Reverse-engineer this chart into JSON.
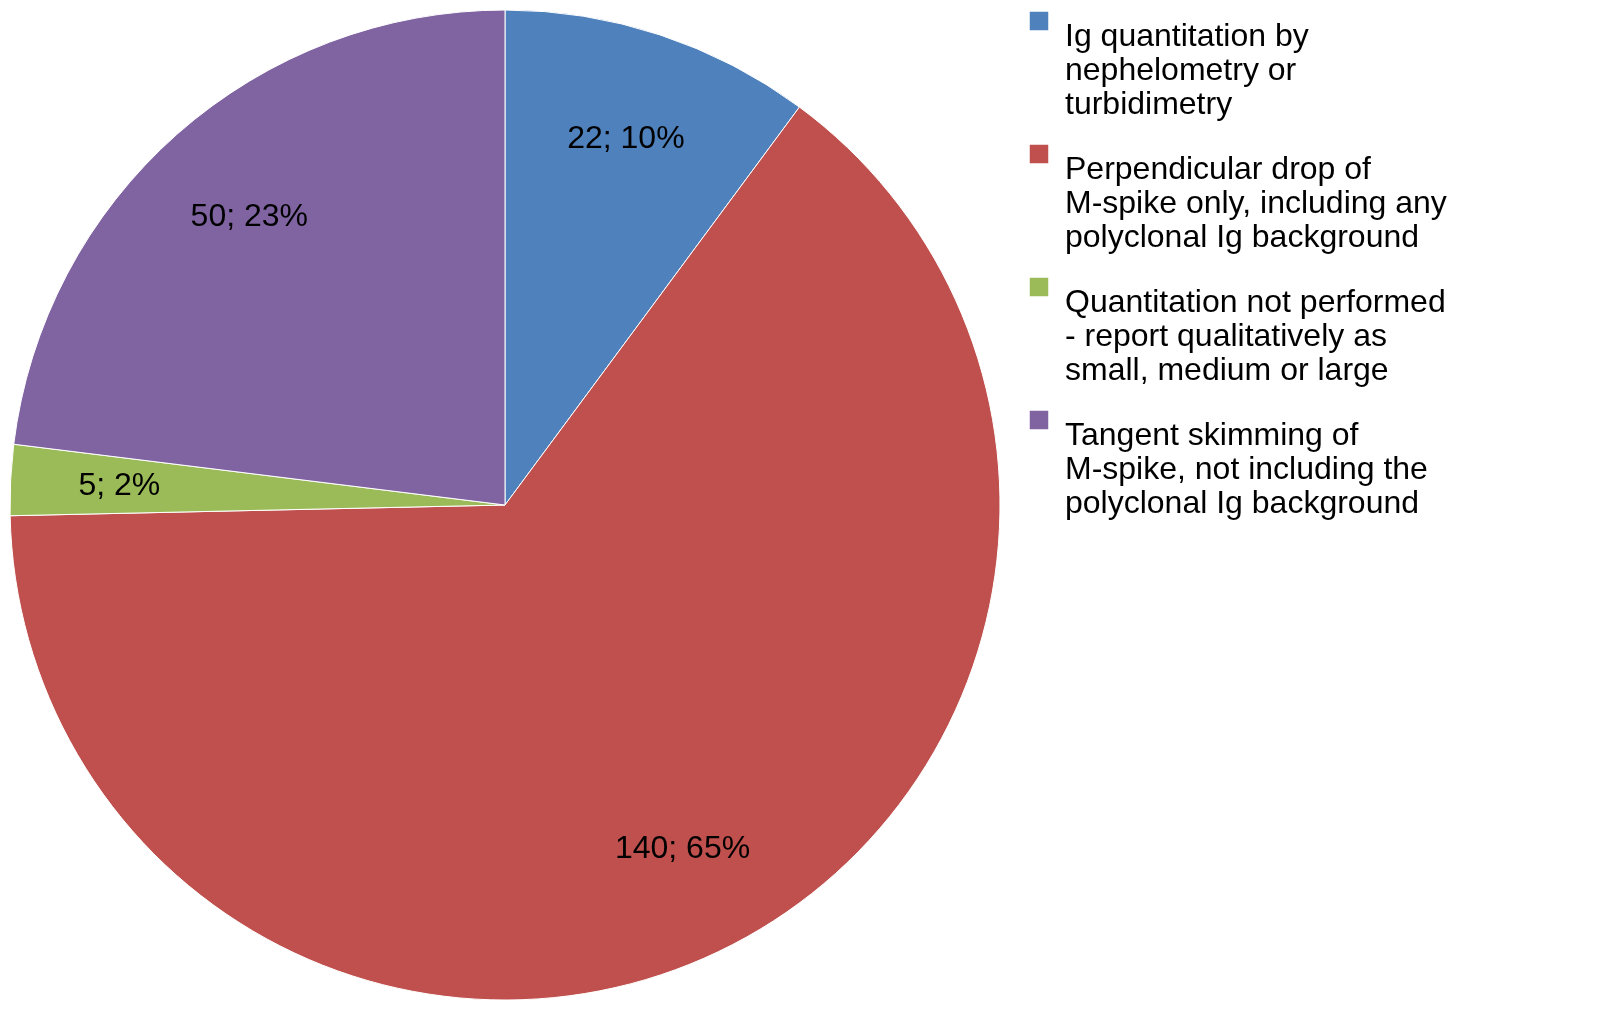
{
  "chart_data": {
    "type": "pie",
    "categories": [
      "Ig quantitation by nephelometry or turbidimetry",
      "Perpendicular drop of M-spike only, including any polyclonal Ig background",
      "Quantitation not performed - report qualitatively as small, medium or large",
      "Tangent skimming of M-spike, not including the polyclonal Ig background"
    ],
    "values": [
      22,
      140,
      5,
      50
    ],
    "colors": [
      "#4f81bd",
      "#c0504d",
      "#9bbb59",
      "#8064a2"
    ],
    "value_labels": [
      "22; 10%",
      "140; 65%",
      "5; 2%",
      "50; 23%"
    ],
    "legend": "right"
  }
}
